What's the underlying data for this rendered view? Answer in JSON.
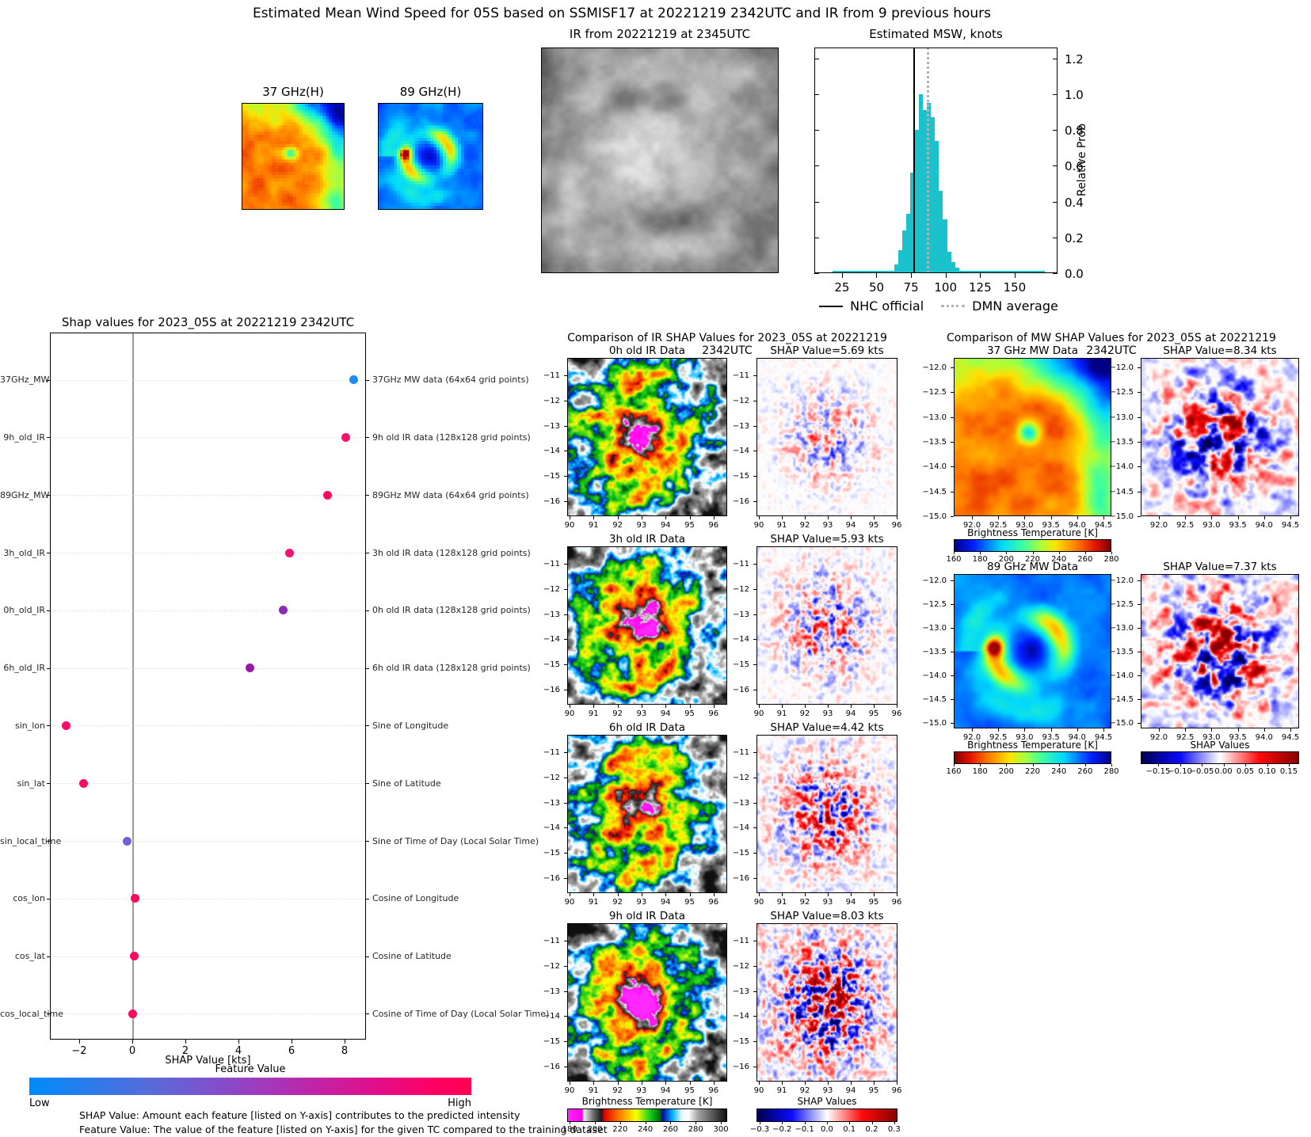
{
  "header": {
    "title": "Estimated Mean Wind Speed for 05S based on SSMISF17 at 20221219 2342UTC and IR from 9 previous hours"
  },
  "chart_data": {
    "mw_small_images": {
      "type": "heatmap",
      "panels": [
        {
          "title": "37 GHz(H)",
          "colormap": "jet"
        },
        {
          "title": "89 GHz(H)",
          "colormap": "jet"
        }
      ]
    },
    "ir_image": {
      "type": "heatmap",
      "title": "IR from 20221219 at 2345UTC",
      "colormap": "grayscale"
    },
    "histogram": {
      "type": "bar",
      "title": "Estimated MSW, knots",
      "ylabel": "Relative Prob",
      "bar_color": "#1BC2CC",
      "x_ticks": [
        25,
        50,
        75,
        100,
        125,
        150
      ],
      "y_ticks": [
        "0.0",
        "0.2",
        "0.4",
        "0.6",
        "0.8",
        "1.0",
        "1.2"
      ],
      "xlim": [
        5,
        181
      ],
      "ylim": [
        0,
        1.26
      ],
      "bins_start_kt": 63,
      "bin_width_kt": 2.9,
      "bin_rel_prob": [
        0.05,
        0.13,
        0.24,
        0.33,
        0.56,
        0.8,
        1.0,
        0.91,
        0.95,
        0.87,
        0.74,
        0.46,
        0.3,
        0.12,
        0.06,
        0.03
      ],
      "baseline": {
        "from_kt": 18,
        "to_kt": 172,
        "rel_prob": 0.012
      },
      "nhc_official_kt": 77,
      "dmn_average_kt": 87,
      "legend": [
        {
          "label": "NHC official",
          "line": "solid",
          "color": "#000000"
        },
        {
          "label": "DMN average",
          "line": "dotted",
          "color": "#b3b3b3"
        }
      ]
    },
    "shap_summary": {
      "type": "scatter",
      "title": "Shap values for 2023_05S at 20221219 2342UTC",
      "xlabel": "SHAP Value [kts]",
      "x_ticks": [
        -2,
        0,
        2,
        4,
        6,
        8
      ],
      "features": [
        {
          "name": "37GHz_MW",
          "description": "37GHz MW data (64x64 grid points)",
          "shap_kts": 8.34,
          "dot_color": "#1E8BFA"
        },
        {
          "name": "9h_old_IR",
          "description": "9h old IR data (128x128 grid points)",
          "shap_kts": 8.03,
          "dot_color": "#FE0E6F"
        },
        {
          "name": "89GHz_MW",
          "description": "89GHz MW data (64x64 grid points)",
          "shap_kts": 7.37,
          "dot_color": "#FA0B5F"
        },
        {
          "name": "3h_old_IR",
          "description": "3h old IR data (128x128 grid points)",
          "shap_kts": 5.93,
          "dot_color": "#F01371"
        },
        {
          "name": "0h_old_IR",
          "description": "0h old IR data (128x128 grid points)",
          "shap_kts": 5.69,
          "dot_color": "#8E2BB4"
        },
        {
          "name": "6h_old_IR",
          "description": "6h old IR data (128x128 grid points)",
          "shap_kts": 4.42,
          "dot_color": "#9C14AE"
        },
        {
          "name": "sin_lon",
          "description": "Sine of Longitude",
          "shap_kts": -2.5,
          "dot_color": "#F70D6B"
        },
        {
          "name": "sin_lat",
          "description": "Sine of Latitude",
          "shap_kts": -1.85,
          "dot_color": "#FA0C63"
        },
        {
          "name": "sin_local_time",
          "description": "Sine of Time of Day (Local Solar Time)",
          "shap_kts": -0.2,
          "dot_color": "#6E63D8"
        },
        {
          "name": "cos_lon",
          "description": "Cosine of Longitude",
          "shap_kts": 0.1,
          "dot_color": "#FB0A5E"
        },
        {
          "name": "cos_lat",
          "description": "Cosine of Latitude",
          "shap_kts": 0.07,
          "dot_color": "#FB0A5E"
        },
        {
          "name": "cos_local_time",
          "description": "Cosine of Time of Day (Local Solar Time)",
          "shap_kts": 0.02,
          "dot_color": "#FB0A5E"
        }
      ],
      "colorbar": {
        "title": "Feature Value",
        "low_label": "Low",
        "high_label": "High",
        "left_color": "#008BFB",
        "right_color": "#FF0051"
      },
      "footnotes": [
        "SHAP Value: Amount each feature [listed on Y-axis] contributes to the predicted intensity",
        "Feature Value: The value of the feature [listed on Y-axis] for the given TC compared to the training dataset"
      ]
    },
    "ir_comparison": {
      "type": "heatmap",
      "title": "Comparison of IR SHAP Values for 2023_05S at 20221219 2342UTC",
      "x_ticks": [
        90,
        91,
        92,
        93,
        94,
        95,
        96
      ],
      "y_ticks": [
        -11,
        -12,
        -13,
        -14,
        -15,
        -16
      ],
      "rows": [
        {
          "data_title": "0h old IR Data",
          "shap_title": "SHAP Value=5.69 kts",
          "shap_kts": 5.69
        },
        {
          "data_title": "3h old IR Data",
          "shap_title": "SHAP Value=5.93 kts",
          "shap_kts": 5.93
        },
        {
          "data_title": "6h old IR Data",
          "shap_title": "SHAP Value=4.42 kts",
          "shap_kts": 4.42
        },
        {
          "data_title": "9h old IR Data",
          "shap_title": "SHAP Value=8.03 kts",
          "shap_kts": 8.03
        }
      ],
      "bt_colorbar": {
        "label": "Brightness Temperature [K]",
        "ticks": [
          180,
          200,
          220,
          240,
          260,
          280,
          300
        ]
      },
      "shap_colorbar": {
        "label": "SHAP Values",
        "ticks": [
          "-0.3",
          "-0.2",
          "-0.1",
          "0.0",
          "0.1",
          "0.2",
          "0.3"
        ]
      }
    },
    "mw_comparison": {
      "type": "heatmap",
      "title": "Comparison of MW SHAP Values for 2023_05S at 20221219 2342UTC",
      "x_ticks": [
        "92.0",
        "92.5",
        "93.0",
        "93.5",
        "94.0",
        "94.5"
      ],
      "y_ticks": [
        "-12.0",
        "-12.5",
        "-13.0",
        "-13.5",
        "-14.0",
        "-14.5",
        "-15.0"
      ],
      "rows": [
        {
          "data_title": "37 GHz MW Data",
          "shap_title": "SHAP Value=8.34 kts",
          "shap_kts": 8.34,
          "bt_direction": "normal"
        },
        {
          "data_title": "89 GHz MW Data",
          "shap_title": "SHAP Value=7.37 kts",
          "shap_kts": 7.37,
          "bt_direction": "reversed"
        }
      ],
      "bt_colorbar": {
        "label": "Brightness Temperature [K]",
        "ticks": [
          160,
          180,
          200,
          220,
          240,
          260,
          280
        ]
      },
      "shap_colorbar": {
        "label": "SHAP Values",
        "ticks": [
          "-0.15",
          "-0.10",
          "-0.05",
          "0.00",
          "0.05",
          "0.10",
          "0.15"
        ]
      }
    }
  }
}
